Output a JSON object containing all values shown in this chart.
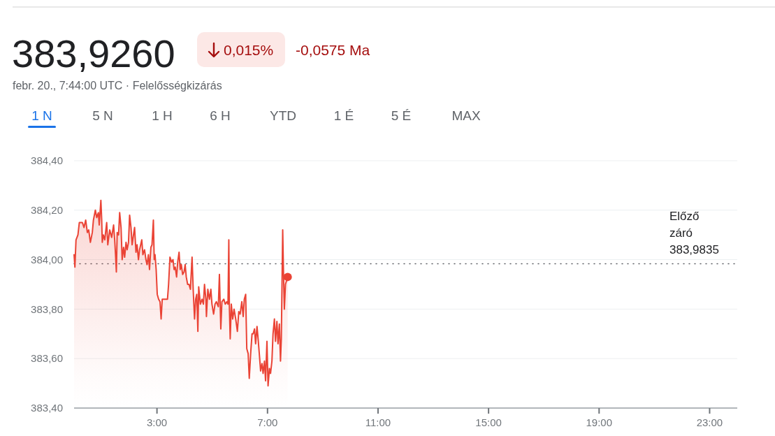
{
  "chart_data": {
    "type": "area",
    "title": "383,9260",
    "subtitle": "febr. 20., 7:44:00 UTC · Felelősségkizárás",
    "annotations": [
      "0,015%",
      "-0,0575 Ma",
      "1 N",
      "5 N",
      "1 H",
      "6 H",
      "YTD",
      "1 É",
      "5 É",
      "MAX"
    ],
    "xlim": [
      0,
      24
    ],
    "xticks": [
      {
        "value": 3,
        "label": "3:00"
      },
      {
        "value": 7,
        "label": "7:00"
      },
      {
        "value": 11,
        "label": "11:00"
      },
      {
        "value": 15,
        "label": "15:00"
      },
      {
        "value": 19,
        "label": "19:00"
      },
      {
        "value": 23,
        "label": "23:00"
      }
    ],
    "ylim": [
      383.4,
      384.4
    ],
    "yticks": [
      {
        "value": 383.4,
        "label": "383,40"
      },
      {
        "value": 383.6,
        "label": "383,60"
      },
      {
        "value": 383.8,
        "label": "383,80"
      },
      {
        "value": 384.0,
        "label": "384,00"
      },
      {
        "value": 384.2,
        "label": "384,20"
      },
      {
        "value": 384.4,
        "label": "384,40"
      }
    ],
    "grid": "y",
    "ref_lines": [
      {
        "axis": "y",
        "value": 383.9835,
        "label": "Előző záró 383,9835",
        "line_style": "dotted",
        "color": "#5f6368"
      }
    ],
    "series": [
      {
        "color": "#ea4335",
        "x": [
          0,
          0.03,
          0.07,
          0.14,
          0.19,
          0.3,
          0.36,
          0.42,
          0.48,
          0.53,
          0.59,
          0.66,
          0.7,
          0.77,
          0.82,
          0.88,
          0.91,
          0.97,
          1.0,
          1.02,
          1.06,
          1.11,
          1.18,
          1.22,
          1.29,
          1.36,
          1.43,
          1.47,
          1.5,
          1.53,
          1.56,
          1.61,
          1.65,
          1.7,
          1.74,
          1.79,
          1.83,
          1.88,
          1.92,
          1.97,
          2.01,
          2.06,
          2.1,
          2.15,
          2.19,
          2.24,
          2.28,
          2.33,
          2.37,
          2.45,
          2.49,
          2.55,
          2.6,
          2.64,
          2.69,
          2.73,
          2.78,
          2.82,
          2.87,
          2.9,
          2.93,
          2.97,
          3.01,
          3.06,
          3.11,
          3.15,
          3.19,
          3.28,
          3.38,
          3.42,
          3.47,
          3.53,
          3.58,
          3.62,
          3.66,
          3.71,
          3.75,
          3.8,
          3.84,
          3.88,
          3.93,
          3.98,
          4.02,
          4.06,
          4.11,
          4.16,
          4.21,
          4.27,
          4.31,
          4.36,
          4.4,
          4.44,
          4.48,
          4.51,
          4.57,
          4.63,
          4.68,
          4.72,
          4.77,
          4.79,
          4.84,
          4.9,
          4.95,
          4.99,
          5.05,
          5.1,
          5.15,
          5.22,
          5.26,
          5.31,
          5.35,
          5.42,
          5.47,
          5.53,
          5.57,
          5.6,
          5.62,
          5.65,
          5.69,
          5.74,
          5.79,
          5.85,
          5.91,
          5.96,
          6.01,
          6.07,
          6.12,
          6.16,
          6.21,
          6.25,
          6.3,
          6.34,
          6.39,
          6.44,
          6.48,
          6.53,
          6.57,
          6.62,
          6.66,
          6.71,
          6.75,
          6.8,
          6.84,
          6.89,
          6.93,
          6.98,
          7.02,
          7.07,
          7.11,
          7.16,
          7.2,
          7.25,
          7.29,
          7.34,
          7.38,
          7.43,
          7.47,
          7.5,
          7.55,
          7.58,
          7.61,
          7.65,
          7.7,
          7.73
        ],
        "values": [
          384.02,
          383.97,
          384.08,
          384.1,
          384.15,
          384.15,
          384.13,
          384.16,
          384.11,
          384.12,
          384.07,
          384.11,
          384.16,
          384.2,
          384.17,
          384.19,
          384.14,
          384.24,
          384.16,
          384.07,
          384.1,
          384.08,
          384.15,
          384.06,
          384.12,
          384.09,
          384.14,
          384.08,
          384.02,
          383.95,
          384.11,
          384.1,
          384.19,
          384.13,
          384.0,
          384.05,
          384.01,
          384.07,
          384.04,
          384.07,
          384.18,
          384.13,
          384.06,
          384.1,
          384.13,
          384.03,
          384.06,
          384.0,
          384.04,
          384.08,
          384.02,
          384.04,
          384.0,
          383.98,
          384.02,
          383.96,
          384.05,
          384.06,
          384.16,
          384.0,
          384.02,
          383.96,
          383.86,
          383.84,
          383.83,
          383.76,
          383.84,
          383.84,
          383.84,
          383.9,
          384.01,
          383.99,
          384.0,
          383.96,
          383.97,
          383.93,
          383.99,
          384.03,
          383.96,
          383.98,
          383.94,
          383.95,
          383.98,
          383.93,
          383.9,
          383.9,
          383.88,
          384.01,
          383.88,
          383.76,
          383.84,
          383.86,
          383.71,
          383.89,
          383.82,
          383.84,
          383.82,
          383.9,
          383.84,
          383.77,
          383.88,
          383.84,
          383.88,
          383.82,
          383.78,
          383.82,
          383.83,
          383.81,
          383.94,
          383.72,
          383.83,
          383.84,
          383.82,
          383.83,
          383.82,
          384.08,
          383.81,
          383.68,
          383.82,
          383.76,
          383.8,
          383.76,
          383.71,
          383.79,
          383.78,
          383.83,
          383.77,
          383.84,
          383.86,
          383.64,
          383.62,
          383.52,
          383.62,
          383.7,
          383.7,
          383.72,
          383.66,
          383.73,
          383.68,
          383.61,
          383.55,
          383.58,
          383.54,
          383.59,
          383.51,
          383.67,
          383.49,
          383.56,
          383.54,
          383.59,
          383.7,
          383.76,
          383.67,
          383.75,
          383.66,
          383.74,
          383.59,
          383.68,
          384.12,
          383.94,
          383.8,
          383.9,
          383.92,
          383.93
        ]
      },
      {
        "type": "scatter",
        "color": "#ea4335",
        "marker": "circle",
        "x": [
          7.73
        ],
        "values": [
          383.93
        ]
      }
    ]
  }
}
